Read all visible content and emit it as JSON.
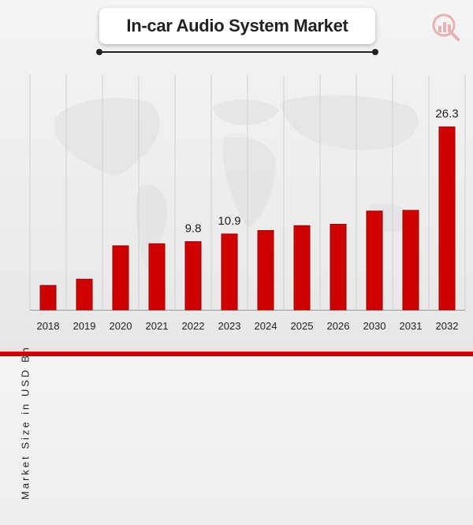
{
  "colors": {
    "bar": "#d10000",
    "bar_edge": "#9a0000",
    "grid": "#cfcfcf",
    "text": "#222222",
    "accent": "#cc0000"
  },
  "logo_icon": "market-research-logo-icon",
  "chart_data": {
    "type": "bar",
    "title": "In-car Audio System Market",
    "xlabel": "",
    "ylabel": "Market Size in USD Bn",
    "categories": [
      "2018",
      "2019",
      "2020",
      "2021",
      "2022",
      "2023",
      "2024",
      "2025",
      "2026",
      "2030",
      "2031",
      "2032"
    ],
    "values": [
      3.5,
      4.4,
      9.2,
      9.5,
      9.8,
      10.9,
      11.4,
      12.1,
      12.3,
      14.2,
      14.3,
      26.3
    ],
    "data_labels": [
      {
        "index": 4,
        "text": "9.8"
      },
      {
        "index": 5,
        "text": "10.9"
      },
      {
        "index": 11,
        "text": "26.3"
      }
    ],
    "grid": true,
    "legend": "none"
  }
}
